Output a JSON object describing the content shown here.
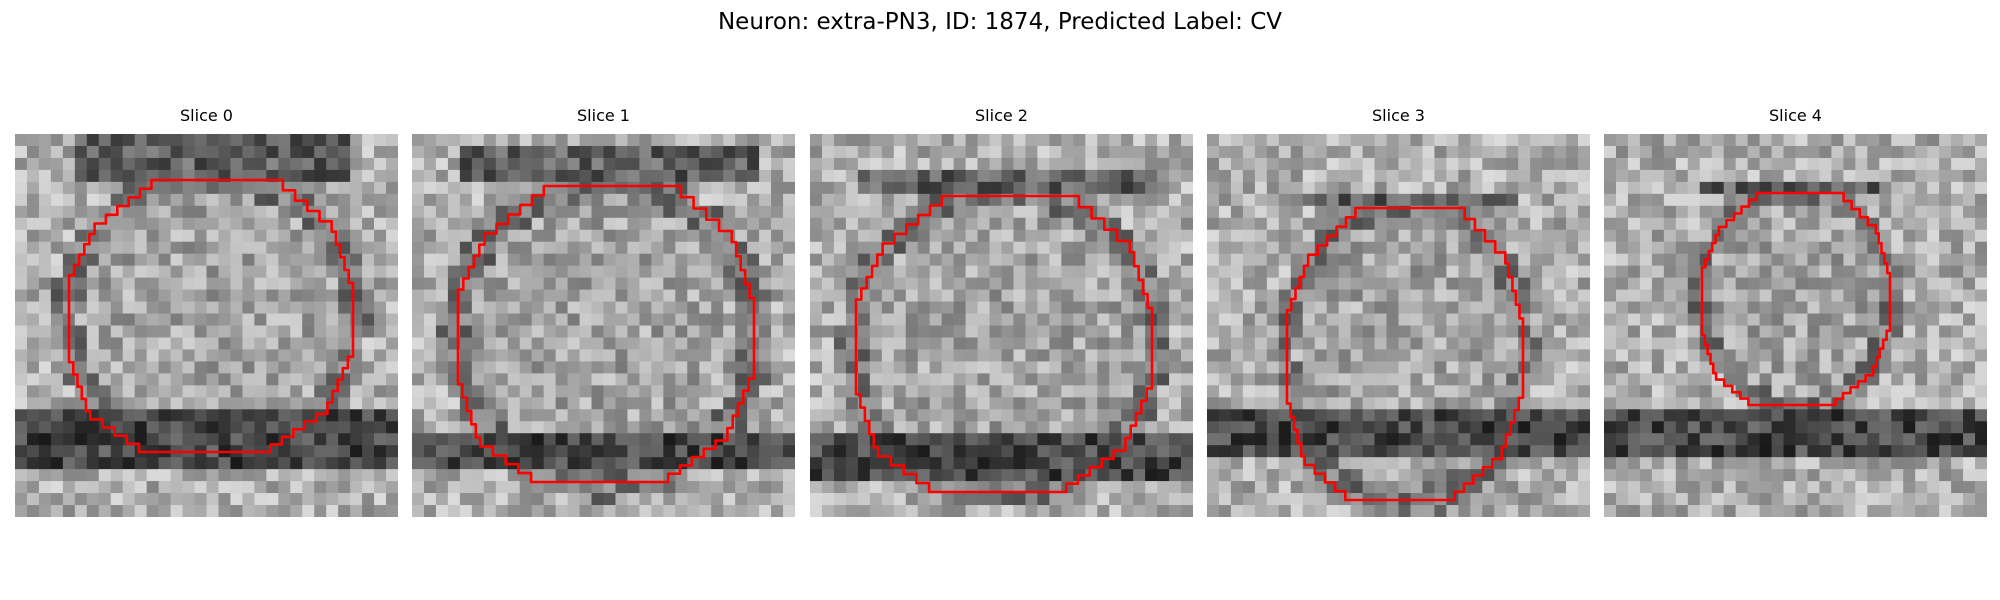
{
  "figure": {
    "title": "Neuron: extra-PN3, ID: 1874, Predicted Label: CV"
  },
  "contour_color": "#ff0000",
  "panels": [
    {
      "title": "Slice 0"
    },
    {
      "title": "Slice 1"
    },
    {
      "title": "Slice 2"
    },
    {
      "title": "Slice 3"
    },
    {
      "title": "Slice 4"
    }
  ]
}
